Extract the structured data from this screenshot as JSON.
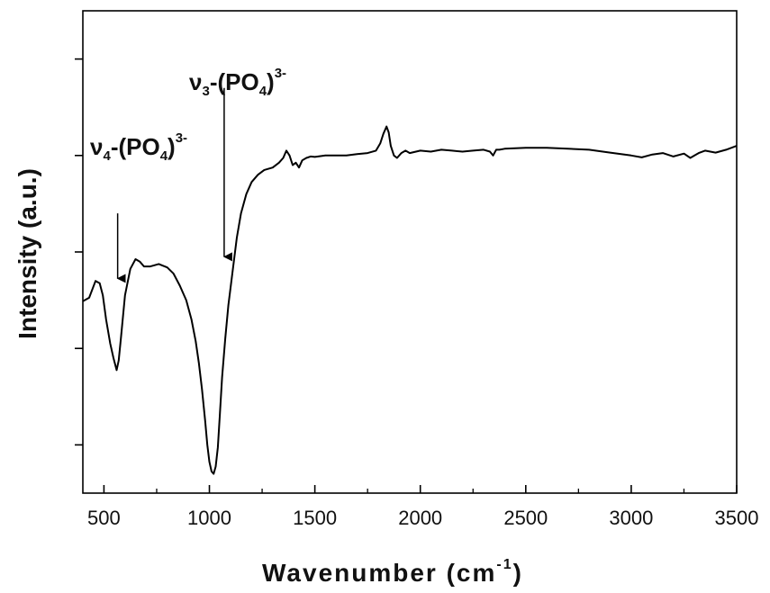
{
  "chart_data": {
    "type": "line",
    "title": "",
    "xlabel": "Wavenumber (cm",
    "xlabel_sup": "-1",
    "xlabel_close": ")",
    "ylabel": "Intensity (a.u.)",
    "xlim": [
      400,
      3500
    ],
    "ylim": [
      0,
      1
    ],
    "x_ticks": [
      500,
      1000,
      1500,
      2000,
      2500,
      3000,
      3500
    ],
    "x_tick_labels": [
      "500",
      "1000",
      "1500",
      "2000",
      "2500",
      "3000",
      "3500"
    ],
    "y_ticks": [
      0.1,
      0.3,
      0.5,
      0.7,
      0.9
    ],
    "y_tick_labels_shown": false,
    "grid": false,
    "series": [
      {
        "color": "#000000",
        "x": [
          400,
          430,
          460,
          480,
          495,
          510,
          530,
          545,
          560,
          570,
          580,
          600,
          625,
          650,
          670,
          690,
          720,
          760,
          800,
          830,
          860,
          890,
          915,
          935,
          950,
          965,
          980,
          990,
          1000,
          1010,
          1020,
          1030,
          1040,
          1050,
          1060,
          1075,
          1090,
          1110,
          1130,
          1150,
          1175,
          1200,
          1230,
          1260,
          1300,
          1330,
          1350,
          1365,
          1380,
          1395,
          1410,
          1425,
          1440,
          1460,
          1480,
          1500,
          1550,
          1600,
          1650,
          1700,
          1750,
          1790,
          1810,
          1825,
          1840,
          1850,
          1860,
          1875,
          1890,
          1910,
          1930,
          1950,
          2000,
          2050,
          2100,
          2150,
          2200,
          2250,
          2300,
          2330,
          2345,
          2360,
          2375,
          2400,
          2450,
          2500,
          2600,
          2700,
          2800,
          2900,
          3000,
          3050,
          3100,
          3150,
          3200,
          3250,
          3280,
          3300,
          3320,
          3350,
          3400,
          3450,
          3500
        ],
        "y": [
          0.398,
          0.405,
          0.44,
          0.435,
          0.41,
          0.36,
          0.31,
          0.28,
          0.255,
          0.275,
          0.32,
          0.41,
          0.465,
          0.485,
          0.48,
          0.47,
          0.47,
          0.475,
          0.468,
          0.455,
          0.43,
          0.4,
          0.36,
          0.315,
          0.27,
          0.215,
          0.15,
          0.1,
          0.065,
          0.045,
          0.04,
          0.055,
          0.095,
          0.165,
          0.24,
          0.32,
          0.39,
          0.46,
          0.53,
          0.58,
          0.62,
          0.645,
          0.66,
          0.67,
          0.675,
          0.685,
          0.695,
          0.71,
          0.7,
          0.68,
          0.685,
          0.675,
          0.69,
          0.695,
          0.698,
          0.697,
          0.7,
          0.7,
          0.7,
          0.703,
          0.705,
          0.71,
          0.725,
          0.745,
          0.76,
          0.748,
          0.72,
          0.7,
          0.695,
          0.705,
          0.71,
          0.705,
          0.71,
          0.708,
          0.712,
          0.71,
          0.708,
          0.71,
          0.712,
          0.708,
          0.7,
          0.712,
          0.712,
          0.714,
          0.715,
          0.716,
          0.716,
          0.714,
          0.712,
          0.706,
          0.7,
          0.696,
          0.702,
          0.705,
          0.698,
          0.704,
          0.695,
          0.7,
          0.705,
          0.71,
          0.706,
          0.712,
          0.72
        ]
      }
    ],
    "annotations": [
      {
        "id": "nu4",
        "prefix": "ν",
        "sub": "4",
        "mid": "-(PO",
        "sub2": "4",
        "close": ")",
        "sup": "3-",
        "arrow_x": 565,
        "arrow_y_tip": 0.445,
        "arrow_y_start": 0.58
      },
      {
        "id": "nu3",
        "prefix": "ν",
        "sub": "3",
        "mid": "-(PO",
        "sub2": "4",
        "close": ")",
        "sup": "3-",
        "arrow_x": 1070,
        "arrow_y_tip": 0.49,
        "arrow_y_start": 0.84
      }
    ]
  }
}
